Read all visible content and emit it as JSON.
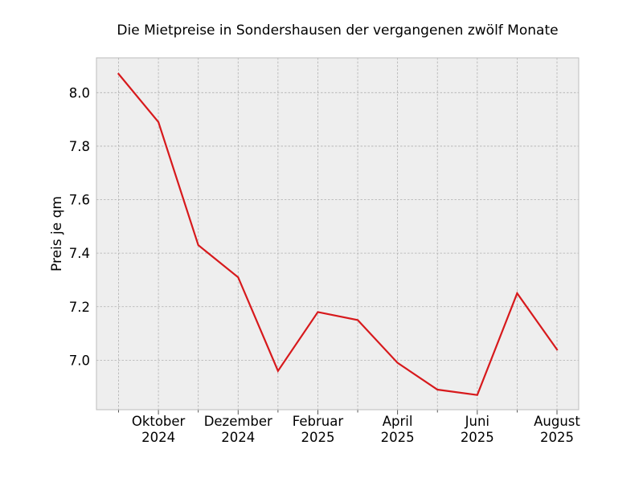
{
  "chart_data": {
    "type": "line",
    "title": "Die Mietpreise in Sondershausen der vergangenen zwölf Monate",
    "xlabel": "",
    "ylabel": "Preis je qm",
    "x": [
      "2024-09",
      "2024-10",
      "2024-11",
      "2024-12",
      "2025-01",
      "2025-02",
      "2025-03",
      "2025-04",
      "2025-05",
      "2025-06",
      "2025-07",
      "2025-08"
    ],
    "series": [
      {
        "values": [
          8.07,
          7.89,
          7.43,
          7.31,
          6.96,
          7.18,
          7.15,
          6.99,
          6.89,
          6.87,
          7.25,
          7.04
        ],
        "color": "#d7191c"
      }
    ],
    "xticks": [
      {
        "month": "2024-10",
        "line1": "Oktober",
        "line2": "2024"
      },
      {
        "month": "2024-12",
        "line1": "Dezember",
        "line2": "2024"
      },
      {
        "month": "2025-02",
        "line1": "Februar",
        "line2": "2025"
      },
      {
        "month": "2025-04",
        "line1": "April",
        "line2": "2025"
      },
      {
        "month": "2025-06",
        "line1": "Juni",
        "line2": "2025"
      },
      {
        "month": "2025-08",
        "line1": "August",
        "line2": "2025"
      }
    ],
    "yticks": [
      {
        "value": 7.0,
        "label": "7.0"
      },
      {
        "value": 7.2,
        "label": "7.2"
      },
      {
        "value": 7.4,
        "label": "7.4"
      },
      {
        "value": 7.6,
        "label": "7.6"
      },
      {
        "value": 7.8,
        "label": "7.8"
      },
      {
        "value": 8.0,
        "label": "8.0"
      }
    ],
    "xlim": [
      "2024-08",
      "2025-08"
    ],
    "ylim": [
      6.815,
      8.13
    ],
    "grid": true,
    "background": "#eeeeee",
    "grid_color": "#b0b0b0"
  }
}
